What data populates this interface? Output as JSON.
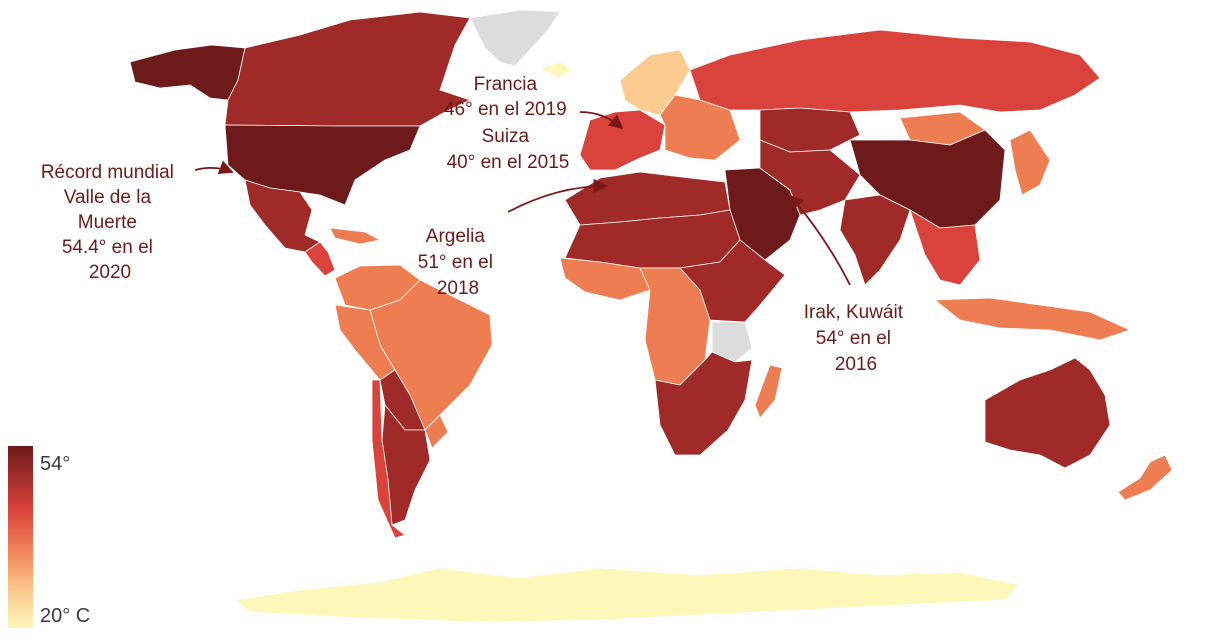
{
  "colors": {
    "scale_max": "#6e1a1a",
    "scale_high": "#a02a27",
    "scale_mid_high": "#d9433b",
    "scale_mid": "#ee7d52",
    "scale_low": "#fbcb8f",
    "scale_min": "#fdf7b9",
    "no_data": "#dcdcdc",
    "annotation": "#6e1a1a"
  },
  "legend": {
    "max_label": "54°",
    "min_label": "20° C"
  },
  "annotations": {
    "usa": {
      "lines": [
        "Récord mundial",
        "Valle de la",
        "Muerte",
        "54.4° en el",
        "2020"
      ]
    },
    "france": {
      "lines": [
        "Francia",
        "46° en el 2019",
        "Suiza",
        "40° en el 2015"
      ]
    },
    "algeria": {
      "lines": [
        "Argelia",
        "51° en el",
        "2018"
      ]
    },
    "iraq": {
      "lines": [
        "Irak, Kuwáit",
        "54° en el",
        "2016"
      ]
    }
  },
  "regions": [
    {
      "name": "alaska",
      "color_key": "scale_max"
    },
    {
      "name": "canada",
      "color_key": "scale_high"
    },
    {
      "name": "greenland",
      "color_key": "no_data"
    },
    {
      "name": "usa",
      "color_key": "scale_max"
    },
    {
      "name": "mexico",
      "color_key": "scale_high"
    },
    {
      "name": "central-america",
      "color_key": "scale_mid_high"
    },
    {
      "name": "caribbean",
      "color_key": "scale_mid"
    },
    {
      "name": "venezuela-colombia",
      "color_key": "scale_mid"
    },
    {
      "name": "brazil",
      "color_key": "scale_mid"
    },
    {
      "name": "peru-ecuador",
      "color_key": "scale_mid"
    },
    {
      "name": "bolivia-paraguay",
      "color_key": "scale_high"
    },
    {
      "name": "argentina",
      "color_key": "scale_high"
    },
    {
      "name": "chile",
      "color_key": "scale_mid_high"
    },
    {
      "name": "uruguay",
      "color_key": "scale_mid"
    },
    {
      "name": "iceland",
      "color_key": "scale_min"
    },
    {
      "name": "scandinavia",
      "color_key": "scale_low"
    },
    {
      "name": "western-europe",
      "color_key": "scale_mid_high"
    },
    {
      "name": "eastern-europe",
      "color_key": "scale_mid"
    },
    {
      "name": "russia",
      "color_key": "scale_mid_high"
    },
    {
      "name": "kazakhstan",
      "color_key": "scale_high"
    },
    {
      "name": "mongolia",
      "color_key": "scale_mid"
    },
    {
      "name": "china",
      "color_key": "scale_max"
    },
    {
      "name": "middle-east",
      "color_key": "scale_max"
    },
    {
      "name": "iran-central-asia",
      "color_key": "scale_high"
    },
    {
      "name": "india",
      "color_key": "scale_high"
    },
    {
      "name": "southeast-asia",
      "color_key": "scale_mid_high"
    },
    {
      "name": "japan-korea",
      "color_key": "scale_mid"
    },
    {
      "name": "indonesia",
      "color_key": "scale_mid"
    },
    {
      "name": "north-africa",
      "color_key": "scale_high"
    },
    {
      "name": "sahel",
      "color_key": "scale_high"
    },
    {
      "name": "west-africa",
      "color_key": "scale_mid"
    },
    {
      "name": "central-africa",
      "color_key": "scale_mid"
    },
    {
      "name": "east-africa",
      "color_key": "scale_high"
    },
    {
      "name": "tanzania",
      "color_key": "no_data"
    },
    {
      "name": "southern-africa",
      "color_key": "scale_high"
    },
    {
      "name": "madagascar",
      "color_key": "scale_mid"
    },
    {
      "name": "australia",
      "color_key": "scale_high"
    },
    {
      "name": "new-zealand",
      "color_key": "scale_mid"
    },
    {
      "name": "antarctica",
      "color_key": "scale_min"
    }
  ]
}
